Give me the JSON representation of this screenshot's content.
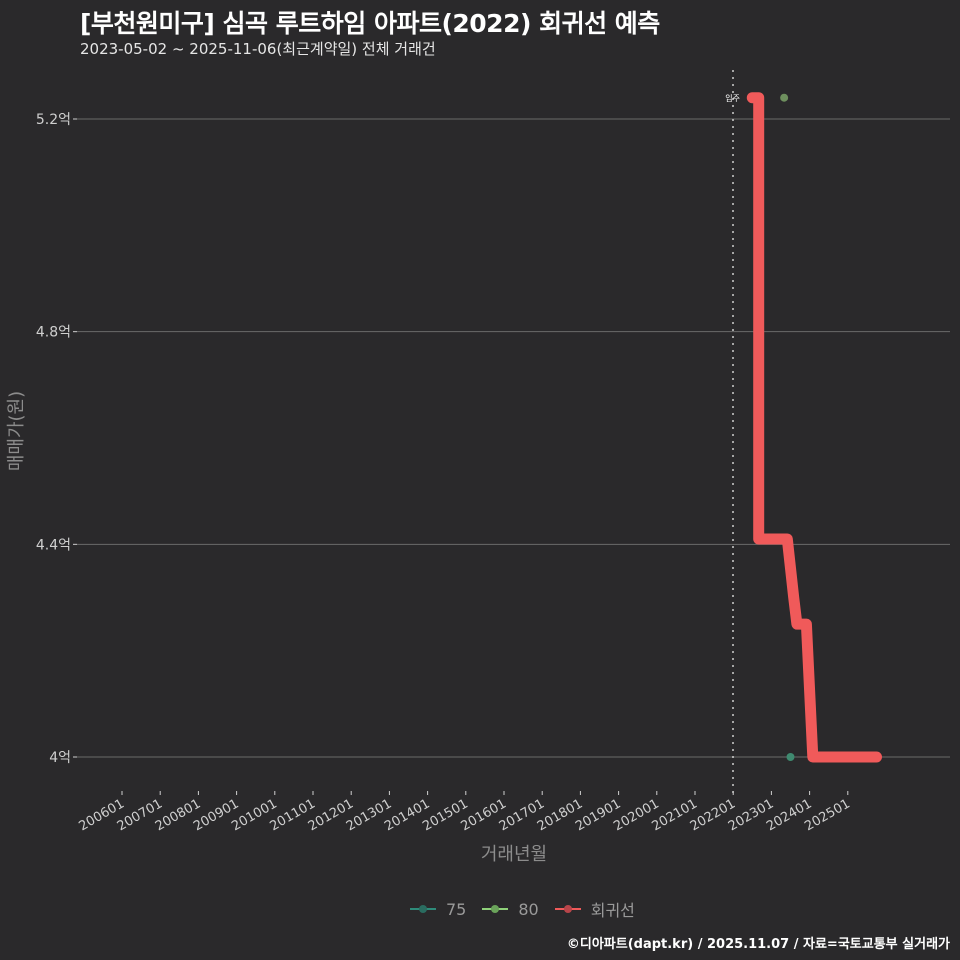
{
  "header": {
    "title": "[부천원미구] 심곡 루트하임 아파트(2022) 회귀선 예측",
    "subtitle": "2023-05-02 ~ 2025-11-06(최근계약일) 전체 거래건"
  },
  "caption": "©디아파트(dapt.kr) / 2025.11.07 / 자료=국토교통부 실거래가",
  "legend": {
    "items": [
      {
        "label": "75",
        "color": "#2e8b7a"
      },
      {
        "label": "80",
        "color": "#8fd17a"
      },
      {
        "label": "회귀선",
        "color": "#f05a5a"
      }
    ]
  },
  "annotations": {
    "move_in_label": "입주"
  },
  "chart_data": {
    "type": "line",
    "title": "[부천원미구] 심곡 루트하임 아파트(2022) 회귀선 예측",
    "subtitle": "2023-05-02 ~ 2025-11-06(최근계약일) 전체 거래건",
    "xlabel": "거래년월",
    "ylabel": "매매가(원)",
    "x_ticks": [
      "200601",
      "200701",
      "200801",
      "200901",
      "201001",
      "201101",
      "201201",
      "201301",
      "201401",
      "201501",
      "201601",
      "201701",
      "201801",
      "201901",
      "202001",
      "202101",
      "202201",
      "202301",
      "202401",
      "202501"
    ],
    "y_ticks": [
      "4억",
      "4.4억",
      "4.8억",
      "5.2억"
    ],
    "y_tick_values": [
      4.0,
      4.4,
      4.8,
      5.2
    ],
    "ylim": [
      3.95,
      5.27
    ],
    "grid": {
      "horizontal": true,
      "vertical": false
    },
    "legend_position": "bottom",
    "vline": {
      "x": "202201",
      "label": "입주",
      "style": "dotted"
    },
    "series": [
      {
        "name": "회귀선",
        "color": "#f05a5a",
        "points": [
          {
            "x": "2022-07",
            "y": 5.24
          },
          {
            "x": "2022-09",
            "y": 5.24
          },
          {
            "x": "2022-09",
            "y": 4.41
          },
          {
            "x": "2023-06",
            "y": 4.41
          },
          {
            "x": "2023-08",
            "y": 4.3
          },
          {
            "x": "2023-09",
            "y": 4.25
          },
          {
            "x": "2023-12",
            "y": 4.25
          },
          {
            "x": "2024-02",
            "y": 4.0
          },
          {
            "x": "2025-10",
            "y": 4.0
          }
        ]
      },
      {
        "name": "80",
        "color": "#6e8f5e",
        "points": [
          {
            "x": "2023-05",
            "y": 5.24
          }
        ]
      },
      {
        "name": "75",
        "color": "#3f8a70",
        "points": [
          {
            "x": "2023-07",
            "y": 4.0
          }
        ]
      }
    ]
  }
}
